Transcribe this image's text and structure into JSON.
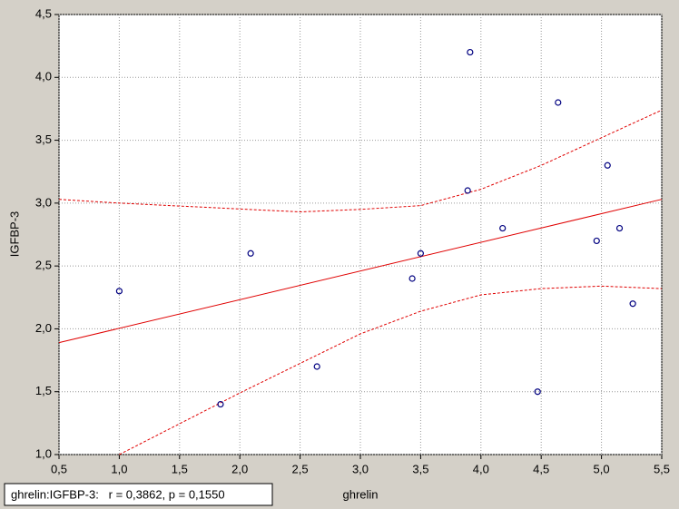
{
  "chart_data": {
    "type": "scatter",
    "x_label": "ghrelin",
    "y_label": "IGFBP-3",
    "annotation": "ghrelin:IGFBP-3:   r = 0,3862, p = 0,1550",
    "x": [
      1.0,
      1.84,
      2.09,
      2.64,
      3.43,
      3.5,
      3.91,
      3.89,
      4.18,
      4.47,
      4.64,
      4.96,
      5.05,
      5.15,
      5.26
    ],
    "values": [
      2.3,
      1.4,
      2.6,
      1.7,
      2.4,
      2.6,
      4.2,
      3.1,
      2.8,
      1.5,
      3.8,
      2.7,
      3.3,
      2.8,
      2.2
    ],
    "color": "#000080",
    "regression": {
      "color": "#e00000",
      "x": [
        0.5,
        5.5
      ],
      "y": [
        1.89,
        3.03
      ]
    },
    "confidence_upper": {
      "color": "#e00000",
      "x": [
        0.5,
        1.0,
        2.5,
        3.0,
        3.5,
        4.0,
        4.5,
        5.0,
        5.5
      ],
      "y": [
        3.03,
        3.0,
        2.93,
        2.95,
        2.98,
        3.11,
        3.3,
        3.52,
        3.74
      ]
    },
    "confidence_lower": {
      "color": "#e00000",
      "x": [
        1.0,
        2.0,
        3.0,
        3.5,
        4.0,
        4.5,
        5.0,
        5.5
      ],
      "y": [
        1.0,
        1.49,
        1.96,
        2.14,
        2.27,
        2.32,
        2.34,
        2.32
      ]
    },
    "xlim": [
      0.5,
      5.5
    ],
    "ylim": [
      1.0,
      4.5
    ],
    "xticks": [
      {
        "value": 0.5,
        "label": "0,5"
      },
      {
        "value": 1.0,
        "label": "1,0"
      },
      {
        "value": 1.5,
        "label": "1,5"
      },
      {
        "value": 2.0,
        "label": "2,0"
      },
      {
        "value": 2.5,
        "label": "2,5"
      },
      {
        "value": 3.0,
        "label": "3,0"
      },
      {
        "value": 3.5,
        "label": "3,5"
      },
      {
        "value": 4.0,
        "label": "4,0"
      },
      {
        "value": 4.5,
        "label": "4,5"
      },
      {
        "value": 5.0,
        "label": "5,0"
      },
      {
        "value": 5.5,
        "label": "5,5"
      }
    ],
    "yticks": [
      {
        "value": 1.0,
        "label": "1,0"
      },
      {
        "value": 1.5,
        "label": "1,5"
      },
      {
        "value": 2.0,
        "label": "2,0"
      },
      {
        "value": 2.5,
        "label": "2,5"
      },
      {
        "value": 3.0,
        "label": "3,0"
      },
      {
        "value": 3.5,
        "label": "3,5"
      },
      {
        "value": 4.0,
        "label": "4,0"
      },
      {
        "value": 4.5,
        "label": "4,5"
      }
    ],
    "grid": true
  }
}
